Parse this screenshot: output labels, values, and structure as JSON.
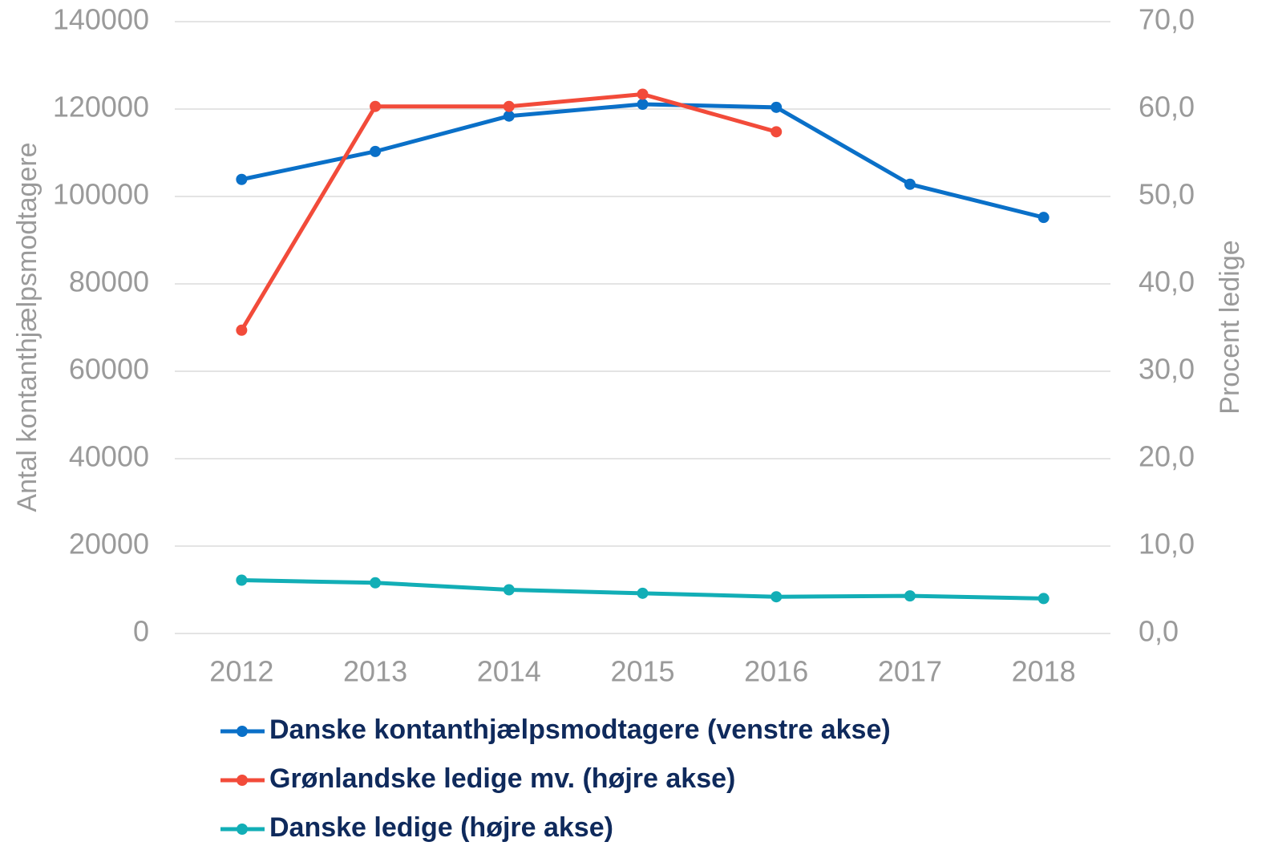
{
  "chart_data": {
    "type": "line",
    "categories": [
      "2012",
      "2013",
      "2014",
      "2015",
      "2016",
      "2017",
      "2018"
    ],
    "y_label": "Antal kontanthjælpsmodtagere",
    "y2_label": "Procent ledige",
    "ylim": [
      0,
      140000
    ],
    "yticks": [
      0,
      20000,
      40000,
      60000,
      80000,
      100000,
      120000,
      140000
    ],
    "y2lim": [
      0,
      70
    ],
    "y2ticks": [
      {
        "value": 0,
        "label": "0,0"
      },
      {
        "value": 10,
        "label": "10,0"
      },
      {
        "value": 20,
        "label": "20,0"
      },
      {
        "value": 30,
        "label": "30,0"
      },
      {
        "value": 40,
        "label": "40,0"
      },
      {
        "value": 50,
        "label": "50,0"
      },
      {
        "value": 60,
        "label": "60,0"
      },
      {
        "value": 70,
        "label": "70,0"
      }
    ],
    "grid": true,
    "series": [
      {
        "name": "Danske kontanthjælpsmodtagere (venstre akse)",
        "color": "#0a70c8",
        "values": [
          103900,
          110300,
          118400,
          121100,
          120400,
          102800,
          95200
        ]
      },
      {
        "name": "Grønlandske ledige mv. (højre akse)",
        "color": "#f24b3a",
        "axis": "y2",
        "values": [
          34.7,
          60.3,
          60.3,
          61.7,
          57.4,
          null,
          null
        ]
      },
      {
        "name": "Danske ledige (højre akse)",
        "color": "#12aeb6",
        "axis": "y2",
        "values": [
          6.1,
          5.8,
          5.0,
          4.6,
          4.2,
          4.3,
          4.0
        ]
      }
    ]
  }
}
